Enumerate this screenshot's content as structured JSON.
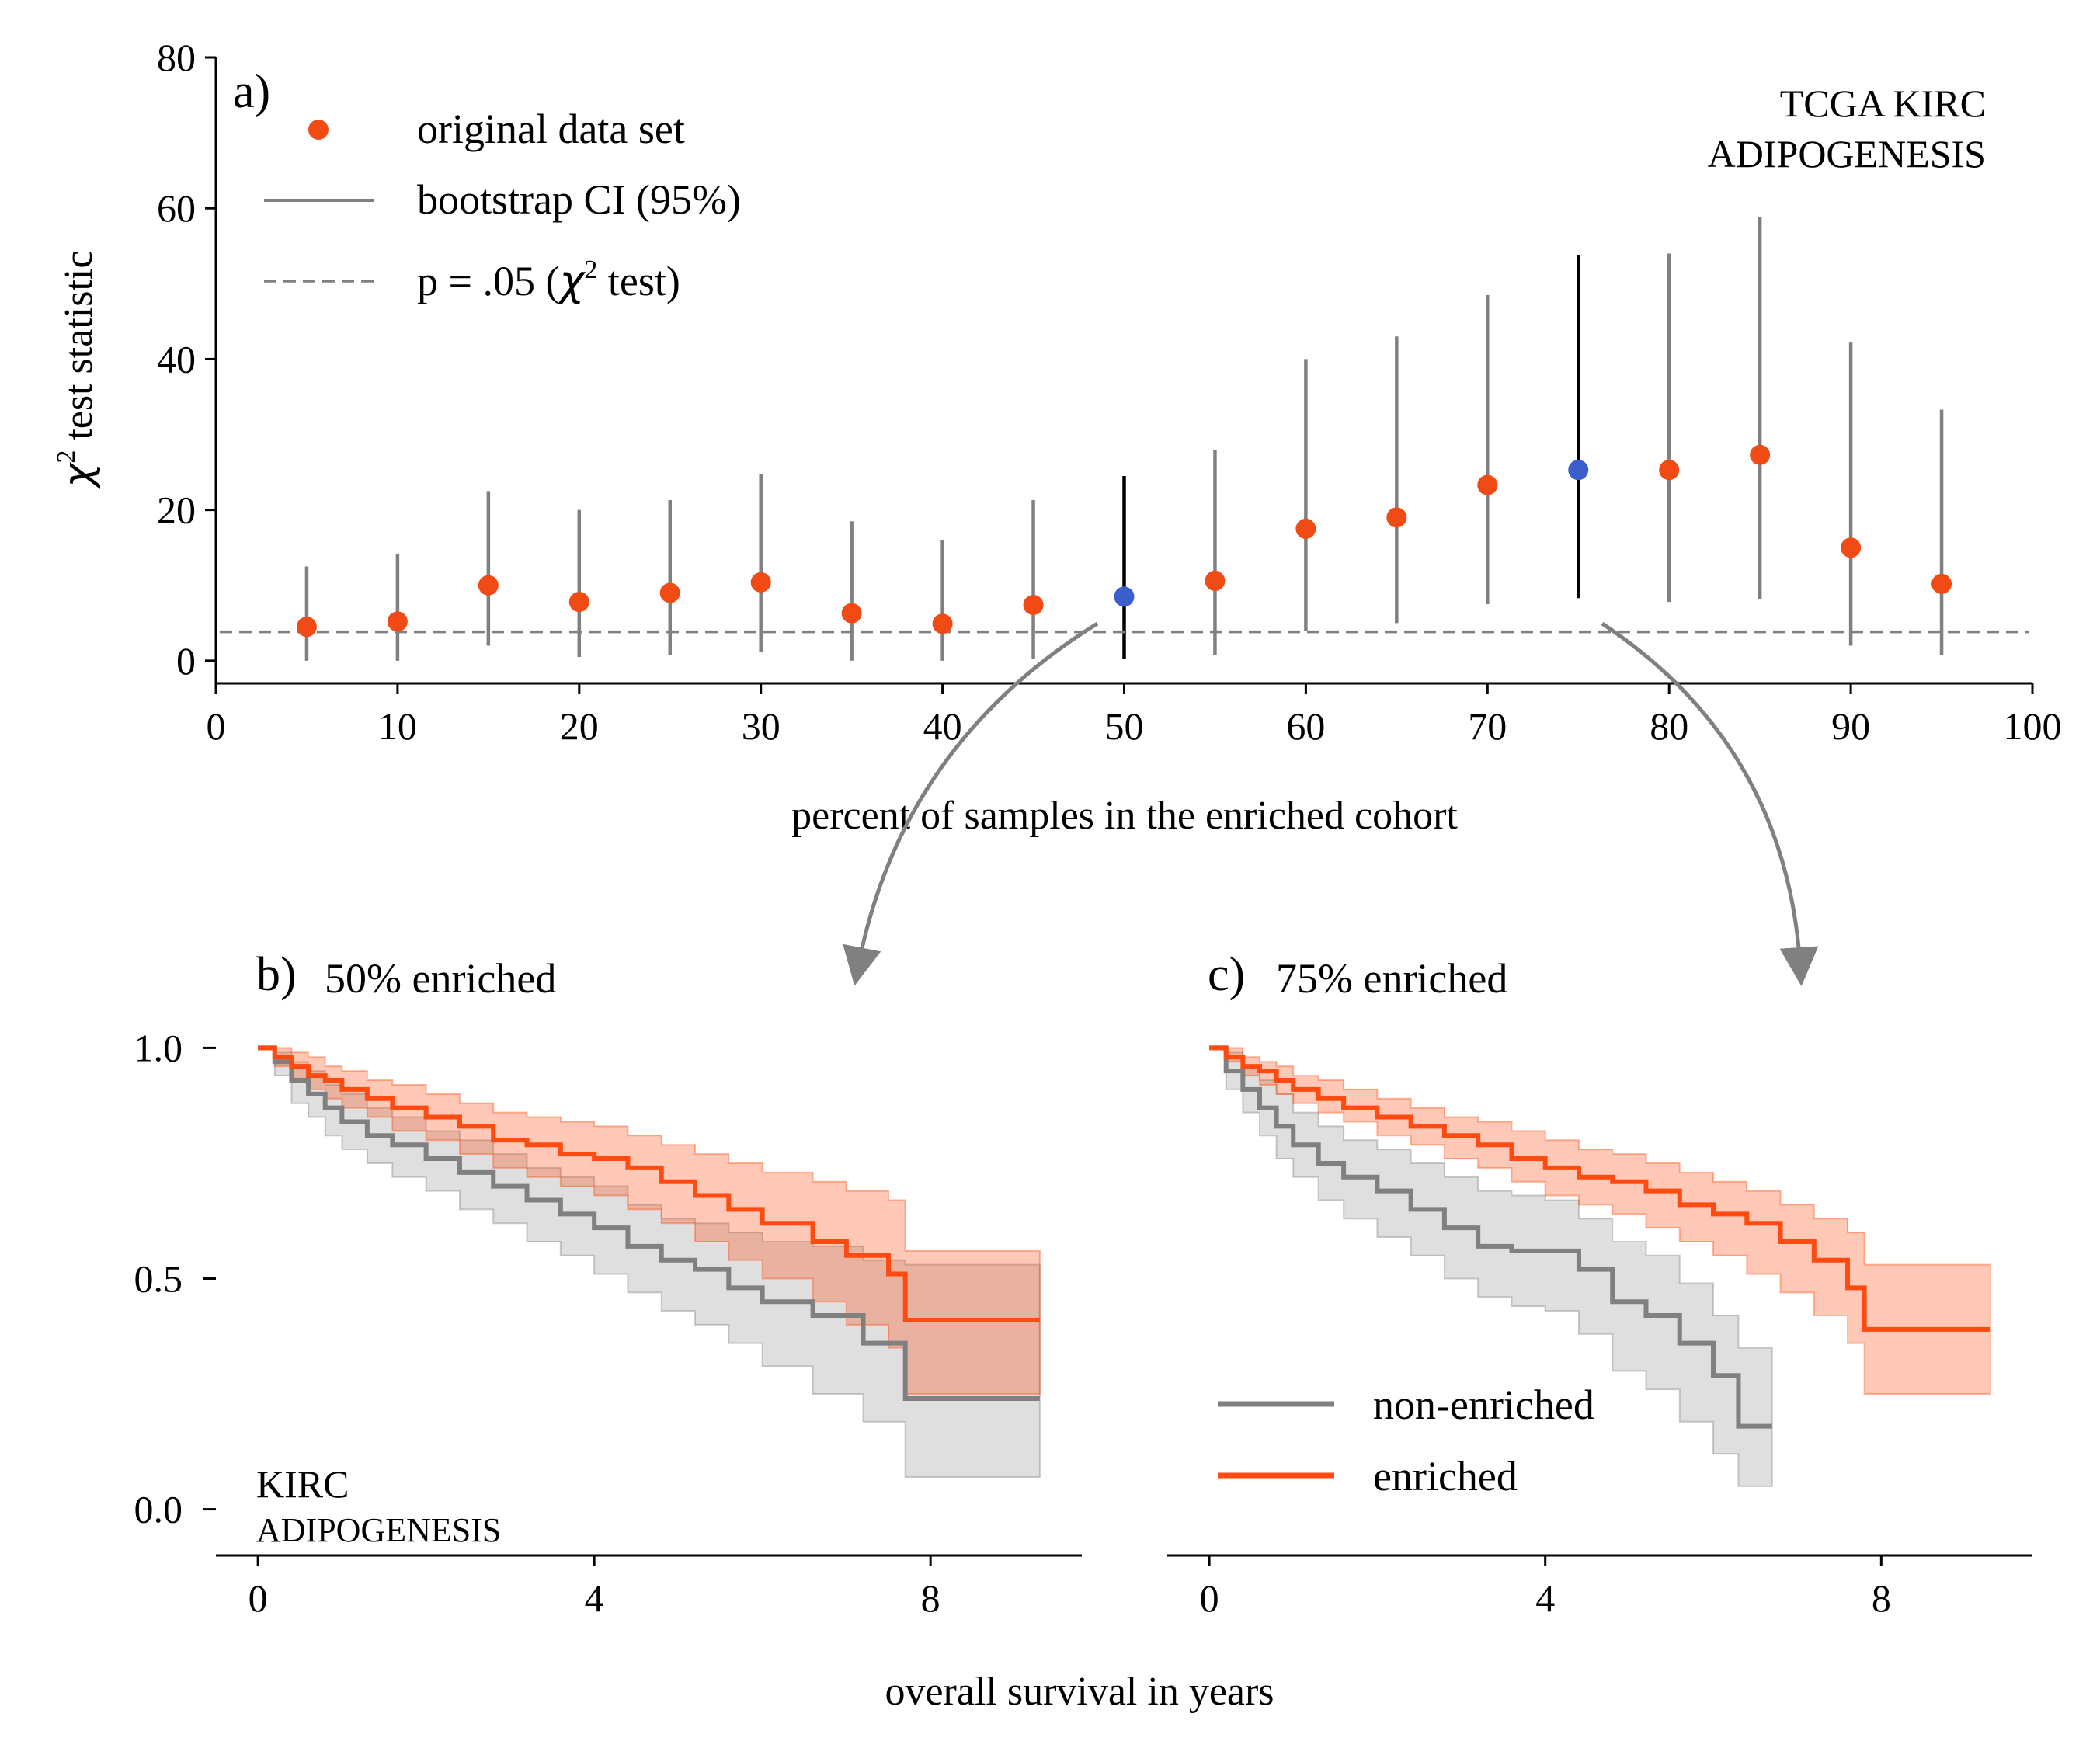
{
  "chart_data": [
    {
      "type": "scatter",
      "panel_label": "a)",
      "xlabel": "percent of samples in the enriched cohort",
      "ylabel_prefix": "χ",
      "ylabel_sup": "2",
      "ylabel_suffix": " test statistic",
      "xlim": [
        0,
        100
      ],
      "ylim": [
        -3,
        80
      ],
      "xticks": [
        0,
        10,
        20,
        30,
        40,
        50,
        60,
        70,
        80,
        90,
        100
      ],
      "yticks": [
        0,
        20,
        40,
        60,
        80
      ],
      "annotation": [
        "TCGA KIRC",
        "ADIPOGENESIS"
      ],
      "significance_threshold": 3.84,
      "legend_position": "upper left",
      "legend": [
        {
          "label": "original data set",
          "kind": "marker",
          "color": "#f04a15"
        },
        {
          "label": "bootstrap CI (95%)",
          "kind": "line",
          "color": "#808080"
        },
        {
          "label_prefix": "p = .05 (",
          "label_chi": "χ",
          "label_sup": "2",
          "label_suffix": " test)",
          "kind": "dashed",
          "color": "#808080"
        }
      ],
      "points": [
        {
          "x": 5,
          "y": 4.5,
          "ci": [
            0,
            12.5
          ],
          "highlight": false
        },
        {
          "x": 10,
          "y": 5.2,
          "ci": [
            0,
            14.2
          ],
          "highlight": false
        },
        {
          "x": 15,
          "y": 10.0,
          "ci": [
            2.0,
            22.5
          ],
          "highlight": false
        },
        {
          "x": 20,
          "y": 7.8,
          "ci": [
            0.5,
            20.0
          ],
          "highlight": false
        },
        {
          "x": 25,
          "y": 9.0,
          "ci": [
            0.8,
            21.3
          ],
          "highlight": false
        },
        {
          "x": 30,
          "y": 10.4,
          "ci": [
            1.2,
            24.8
          ],
          "highlight": false
        },
        {
          "x": 35,
          "y": 6.3,
          "ci": [
            0,
            18.5
          ],
          "highlight": false
        },
        {
          "x": 40,
          "y": 4.9,
          "ci": [
            0,
            16.0
          ],
          "highlight": false
        },
        {
          "x": 45,
          "y": 7.4,
          "ci": [
            0.3,
            21.3
          ],
          "highlight": false
        },
        {
          "x": 50,
          "y": 8.5,
          "ci": [
            0.3,
            24.5
          ],
          "highlight": true
        },
        {
          "x": 55,
          "y": 10.6,
          "ci": [
            0.8,
            28.0
          ],
          "highlight": false
        },
        {
          "x": 60,
          "y": 17.5,
          "ci": [
            4.0,
            40.0
          ],
          "highlight": false
        },
        {
          "x": 65,
          "y": 19.0,
          "ci": [
            5.0,
            43.0
          ],
          "highlight": false
        },
        {
          "x": 70,
          "y": 23.3,
          "ci": [
            7.5,
            48.5
          ],
          "highlight": false
        },
        {
          "x": 75,
          "y": 25.3,
          "ci": [
            8.3,
            53.8
          ],
          "highlight": true
        },
        {
          "x": 80,
          "y": 25.3,
          "ci": [
            7.8,
            54.0
          ],
          "highlight": false
        },
        {
          "x": 85,
          "y": 27.3,
          "ci": [
            8.2,
            58.8
          ],
          "highlight": false
        },
        {
          "x": 90,
          "y": 15.0,
          "ci": [
            2.0,
            42.2
          ],
          "highlight": false
        },
        {
          "x": 95,
          "y": 10.2,
          "ci": [
            0.8,
            33.3
          ],
          "highlight": false
        }
      ],
      "colors": {
        "point": "#f04a15",
        "highlight_point": "#3a5fcd",
        "ci": "#808080",
        "highlight_ci": "#000000"
      }
    },
    {
      "type": "line",
      "subtype": "kaplan-meier",
      "panel_label": "b)",
      "title": "50% enriched",
      "xlim": [
        -0.5,
        9.8
      ],
      "ylim": [
        -0.1,
        1.1
      ],
      "xticks": [
        0,
        4,
        8
      ],
      "yticks": [
        0.0,
        0.5,
        1.0
      ],
      "ytick_labels": [
        "0.0",
        "0.5",
        "1.0"
      ],
      "annotation": [
        "KIRC",
        "ADIPOGENESIS"
      ],
      "series": [
        {
          "color": "#808080",
          "x": [
            0,
            0.2,
            0.4,
            0.6,
            0.8,
            1.0,
            1.3,
            1.6,
            2.0,
            2.4,
            2.8,
            3.2,
            3.6,
            4.0,
            4.4,
            4.8,
            5.2,
            5.6,
            6.0,
            6.6,
            7.2,
            7.7,
            8.5,
            9.3
          ],
          "y": [
            1.0,
            0.97,
            0.93,
            0.9,
            0.87,
            0.84,
            0.81,
            0.79,
            0.76,
            0.73,
            0.7,
            0.67,
            0.64,
            0.61,
            0.57,
            0.54,
            0.52,
            0.48,
            0.45,
            0.42,
            0.36,
            0.24,
            0.24,
            0.24
          ],
          "ci_low": [
            1.0,
            0.94,
            0.88,
            0.85,
            0.81,
            0.78,
            0.75,
            0.72,
            0.69,
            0.65,
            0.62,
            0.58,
            0.55,
            0.51,
            0.47,
            0.43,
            0.4,
            0.36,
            0.31,
            0.25,
            0.19,
            0.07,
            0.07,
            0.07
          ],
          "ci_high": [
            1.0,
            0.99,
            0.97,
            0.95,
            0.92,
            0.9,
            0.87,
            0.85,
            0.82,
            0.8,
            0.77,
            0.74,
            0.72,
            0.7,
            0.66,
            0.63,
            0.62,
            0.6,
            0.58,
            0.57,
            0.54,
            0.53,
            0.53,
            0.53
          ]
        },
        {
          "color": "#ff4a10",
          "x": [
            0,
            0.2,
            0.4,
            0.6,
            0.8,
            1.0,
            1.3,
            1.6,
            2.0,
            2.4,
            2.8,
            3.2,
            3.6,
            4.0,
            4.4,
            4.8,
            5.2,
            5.6,
            6.0,
            6.6,
            7.0,
            7.5,
            7.7,
            8.5,
            9.3
          ],
          "y": [
            1.0,
            0.98,
            0.96,
            0.94,
            0.93,
            0.91,
            0.89,
            0.87,
            0.85,
            0.83,
            0.8,
            0.79,
            0.77,
            0.76,
            0.74,
            0.71,
            0.68,
            0.65,
            0.62,
            0.58,
            0.55,
            0.51,
            0.41,
            0.41,
            0.41
          ],
          "ci_low": [
            1.0,
            0.96,
            0.93,
            0.91,
            0.89,
            0.87,
            0.85,
            0.82,
            0.8,
            0.77,
            0.74,
            0.72,
            0.7,
            0.68,
            0.65,
            0.62,
            0.58,
            0.54,
            0.5,
            0.45,
            0.4,
            0.35,
            0.25,
            0.25,
            0.25
          ],
          "ci_high": [
            1.0,
            1.0,
            0.99,
            0.98,
            0.96,
            0.95,
            0.93,
            0.92,
            0.9,
            0.88,
            0.86,
            0.85,
            0.84,
            0.83,
            0.81,
            0.79,
            0.77,
            0.75,
            0.73,
            0.71,
            0.69,
            0.67,
            0.56,
            0.56,
            0.56
          ]
        }
      ]
    },
    {
      "type": "line",
      "subtype": "kaplan-meier",
      "panel_label": "c)",
      "title": "75% enriched",
      "xlim": [
        -0.5,
        9.8
      ],
      "ylim": [
        -0.1,
        1.1
      ],
      "xticks": [
        0,
        4,
        8
      ],
      "legend_position": "lower left",
      "series": [
        {
          "name": "non-enriched",
          "color": "#808080",
          "x": [
            0,
            0.2,
            0.4,
            0.6,
            0.8,
            1.0,
            1.3,
            1.6,
            2.0,
            2.4,
            2.8,
            3.2,
            3.6,
            4.0,
            4.4,
            4.8,
            5.2,
            5.6,
            6.0,
            6.3,
            6.7
          ],
          "y": [
            1.0,
            0.95,
            0.91,
            0.87,
            0.83,
            0.79,
            0.75,
            0.72,
            0.69,
            0.65,
            0.61,
            0.57,
            0.56,
            0.56,
            0.52,
            0.45,
            0.42,
            0.36,
            0.29,
            0.18,
            0.18
          ],
          "ci_low": [
            1.0,
            0.91,
            0.86,
            0.81,
            0.76,
            0.72,
            0.67,
            0.63,
            0.59,
            0.55,
            0.5,
            0.46,
            0.44,
            0.43,
            0.38,
            0.3,
            0.26,
            0.19,
            0.12,
            0.05,
            0.05
          ],
          "ci_high": [
            1.0,
            0.99,
            0.96,
            0.93,
            0.9,
            0.86,
            0.83,
            0.8,
            0.78,
            0.75,
            0.72,
            0.69,
            0.68,
            0.67,
            0.63,
            0.58,
            0.55,
            0.49,
            0.42,
            0.35,
            0.35
          ]
        },
        {
          "name": "enriched",
          "color": "#ff4a10",
          "x": [
            0,
            0.2,
            0.4,
            0.6,
            0.8,
            1.0,
            1.3,
            1.6,
            2.0,
            2.4,
            2.8,
            3.2,
            3.6,
            4.0,
            4.4,
            4.8,
            5.2,
            5.6,
            6.0,
            6.4,
            6.8,
            7.2,
            7.6,
            7.8,
            8.5,
            9.3
          ],
          "y": [
            1.0,
            0.98,
            0.96,
            0.95,
            0.93,
            0.91,
            0.89,
            0.87,
            0.85,
            0.83,
            0.81,
            0.79,
            0.76,
            0.74,
            0.72,
            0.71,
            0.69,
            0.66,
            0.64,
            0.62,
            0.58,
            0.54,
            0.48,
            0.39,
            0.39,
            0.39
          ],
          "ci_low": [
            1.0,
            0.97,
            0.94,
            0.92,
            0.9,
            0.88,
            0.86,
            0.84,
            0.81,
            0.79,
            0.76,
            0.74,
            0.71,
            0.68,
            0.66,
            0.64,
            0.61,
            0.58,
            0.55,
            0.51,
            0.47,
            0.42,
            0.36,
            0.25,
            0.25,
            0.25
          ],
          "ci_high": [
            1.0,
            1.0,
            0.98,
            0.97,
            0.96,
            0.94,
            0.93,
            0.91,
            0.89,
            0.87,
            0.85,
            0.84,
            0.82,
            0.8,
            0.78,
            0.77,
            0.75,
            0.73,
            0.71,
            0.69,
            0.66,
            0.63,
            0.6,
            0.53,
            0.53,
            0.53
          ]
        }
      ]
    }
  ],
  "shared_xlabel": "overall survival in years"
}
